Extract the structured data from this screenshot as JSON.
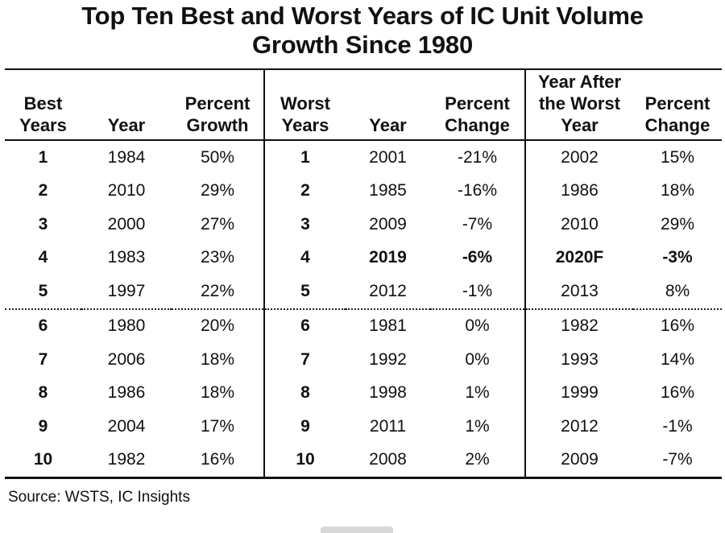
{
  "title_line1": "Top Ten Best and Worst Years of IC Unit Volume",
  "title_line2": "Growth Since 1980",
  "headers": {
    "best_years": [
      "Best",
      "Years"
    ],
    "year_best": "Year",
    "percent_growth": [
      "Percent",
      "Growth"
    ],
    "worst_years": [
      "Worst",
      "Years"
    ],
    "year_worst": "Year",
    "percent_change": [
      "Percent",
      "Change"
    ],
    "year_after": [
      "Year After",
      "the Worst",
      "Year"
    ],
    "percent_change_after": [
      "Percent",
      "Change"
    ]
  },
  "chart_data": {
    "type": "table",
    "title": "Top Ten Best and Worst Years of IC Unit Volume Growth Since 1980",
    "columns": [
      "Best Years",
      "Year",
      "Percent Growth",
      "Worst Years",
      "Year",
      "Percent Change",
      "Year After the Worst Year",
      "Percent Change"
    ],
    "rows": [
      [
        "1",
        "1984",
        "50%",
        "1",
        "2001",
        "-21%",
        "2002",
        "15%"
      ],
      [
        "2",
        "2010",
        "29%",
        "2",
        "1985",
        "-16%",
        "1986",
        "18%"
      ],
      [
        "3",
        "2000",
        "27%",
        "3",
        "2009",
        "-7%",
        "2010",
        "29%"
      ],
      [
        "4",
        "1983",
        "23%",
        "4",
        "2019",
        "-6%",
        "2020F",
        "-3%"
      ],
      [
        "5",
        "1997",
        "22%",
        "5",
        "2012",
        "-1%",
        "2013",
        "8%"
      ],
      [
        "6",
        "1980",
        "20%",
        "6",
        "1981",
        "0%",
        "1982",
        "16%"
      ],
      [
        "7",
        "2006",
        "18%",
        "7",
        "1992",
        "0%",
        "1993",
        "14%"
      ],
      [
        "8",
        "1986",
        "18%",
        "8",
        "1998",
        "1%",
        "1999",
        "16%"
      ],
      [
        "9",
        "2004",
        "17%",
        "9",
        "2011",
        "1%",
        "2012",
        "-1%"
      ],
      [
        "10",
        "1982",
        "16%",
        "10",
        "2008",
        "2%",
        "2009",
        "-7%"
      ]
    ],
    "highlighted_row": 3
  },
  "source": "Source: WSTS, IC Insights"
}
